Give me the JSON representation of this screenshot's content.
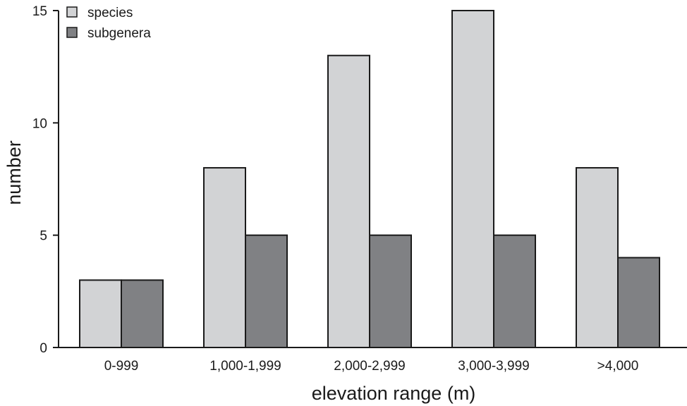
{
  "chart_data": {
    "type": "bar",
    "categories": [
      "0-999",
      "1,000-1,999",
      "2,000-2,999",
      "3,000-3,999",
      ">4,000"
    ],
    "series": [
      {
        "name": "species",
        "values": [
          3,
          8,
          13,
          15,
          8
        ],
        "color": "#d2d3d5"
      },
      {
        "name": "subgenera",
        "values": [
          3,
          5,
          5,
          5,
          4
        ],
        "color": "#808184"
      }
    ],
    "xlabel": "elevation range (m)",
    "ylabel": "number",
    "ylim": [
      0,
      15
    ],
    "yticks": [
      0,
      5,
      10,
      15
    ],
    "grid": false,
    "legend": "top-left"
  }
}
